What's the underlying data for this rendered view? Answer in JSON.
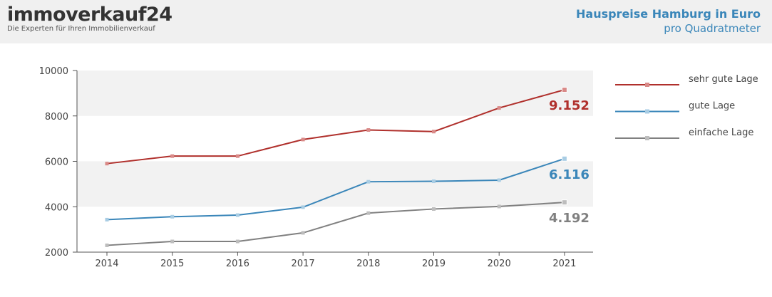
{
  "header": {
    "logo_main": "immoverkauf",
    "logo_num": "24",
    "logo_tagline": "Die Experten für Ihren Immobilienverkauf",
    "title": "Hauspreise Hamburg in Euro",
    "subtitle": "pro Quadratmeter"
  },
  "chart_data": {
    "type": "line",
    "title": "Hauspreise Hamburg in Euro",
    "subtitle": "pro Quadratmeter",
    "xlabel": "",
    "ylabel": "",
    "categories": [
      "2014",
      "2015",
      "2016",
      "2017",
      "2018",
      "2019",
      "2020",
      "2021"
    ],
    "ylim": [
      2000,
      10000
    ],
    "yticks": [
      "10000",
      "8000",
      "6000",
      "4000",
      "2000"
    ],
    "legend_position": "right",
    "series": [
      {
        "name": "sehr gute Lage",
        "color": "#b0302c",
        "marker_color": "#d98a88",
        "values": [
          5900,
          6230,
          6230,
          6960,
          7380,
          7310,
          8350,
          9152
        ],
        "end_label": "9.152"
      },
      {
        "name": "gute Lage",
        "color": "#3a86b9",
        "marker_color": "#a9cde4",
        "values": [
          3430,
          3560,
          3630,
          3980,
          5100,
          5120,
          5170,
          6116
        ],
        "end_label": "6.116"
      },
      {
        "name": "einfache Lage",
        "color": "#808080",
        "marker_color": "#bdbdbd",
        "values": [
          2300,
          2470,
          2470,
          2850,
          3720,
          3900,
          4010,
          4192
        ],
        "end_label": "4.192"
      }
    ]
  }
}
